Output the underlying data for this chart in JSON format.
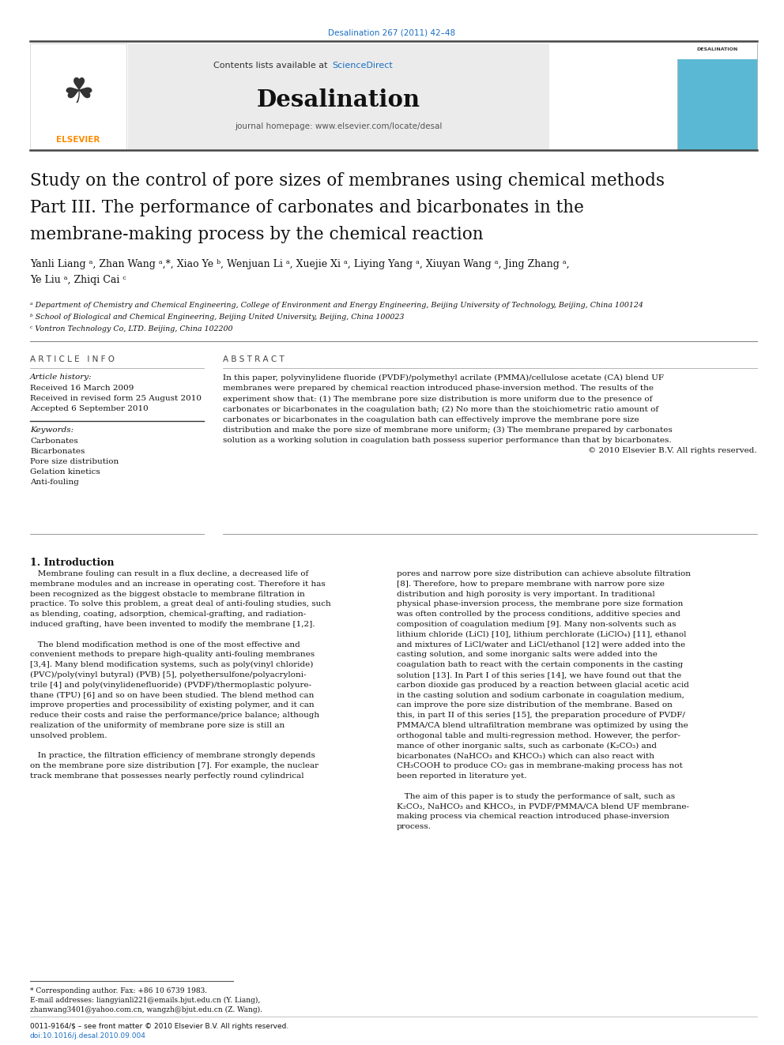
{
  "page_width": 9.92,
  "page_height": 13.23,
  "background_color": "#ffffff",
  "journal_ref": "Desalination 267 (2011) 42–48",
  "journal_ref_color": "#1a6fc4",
  "contents_text": "Contents lists available at ",
  "sciencedirect_text": "ScienceDirect",
  "sciencedirect_color": "#1a6fc4",
  "journal_name": "Desalination",
  "journal_homepage": "journal homepage: www.elsevier.com/locate/desal",
  "title_line1": "Study on the control of pore sizes of membranes using chemical methods",
  "title_line2": "Part III. The performance of carbonates and bicarbonates in the",
  "title_line3": "membrane-making process by the chemical reaction",
  "authors": "Yanli Liang ᵃ, Zhan Wang ᵃ,*, Xiao Ye ᵇ, Wenjuan Li ᵃ, Xuejie Xi ᵃ, Liying Yang ᵃ, Xiuyan Wang ᵃ, Jing Zhang ᵃ,",
  "authors2": "Ye Liu ᵃ, Zhiqi Cai ᶜ",
  "affil_a": "ᵃ Department of Chemistry and Chemical Engineering, College of Environment and Energy Engineering, Beijing University of Technology, Beijing, China 100124",
  "affil_b": "ᵇ School of Biological and Chemical Engineering, Beijing United University, Beijing, China 100023",
  "affil_c": "ᶜ Vontron Technology Co, LTD. Beijing, China 102200",
  "article_info_label": "A R T I C L E   I N F O",
  "article_history_label": "Article history:",
  "received1": "Received 16 March 2009",
  "received2": "Received in revised form 25 August 2010",
  "accepted": "Accepted 6 September 2010",
  "keywords_label": "Keywords:",
  "keywords": [
    "Carbonates",
    "Bicarbonates",
    "Pore size distribution",
    "Gelation kinetics",
    "Anti-fouling"
  ],
  "abstract_label": "A B S T R A C T",
  "abstract_lines": [
    "In this paper, polyvinylidene fluoride (PVDF)/polymethyl acrilate (PMMA)/cellulose acetate (CA) blend UF",
    "membranes were prepared by chemical reaction introduced phase-inversion method. The results of the",
    "experiment show that: (1) The membrane pore size distribution is more uniform due to the presence of",
    "carbonates or bicarbonates in the coagulation bath; (2) No more than the stoichiometric ratio amount of",
    "carbonates or bicarbonates in the coagulation bath can effectively improve the membrane pore size",
    "distribution and make the pore size of membrane more uniform; (3) The membrane prepared by carbonates",
    "solution as a working solution in coagulation bath possess superior performance than that by bicarbonates.",
    "© 2010 Elsevier B.V. All rights reserved."
  ],
  "section1_title": "1. Introduction",
  "intro_left_lines": [
    "   Membrane fouling can result in a flux decline, a decreased life of",
    "membrane modules and an increase in operating cost. Therefore it has",
    "been recognized as the biggest obstacle to membrane filtration in",
    "practice. To solve this problem, a great deal of anti-fouling studies, such",
    "as blending, coating, adsorption, chemical-grafting, and radiation-",
    "induced grafting, have been invented to modify the membrane [1,2].",
    "",
    "   The blend modification method is one of the most effective and",
    "convenient methods to prepare high-quality anti-fouling membranes",
    "[3,4]. Many blend modification systems, such as poly(vinyl chloride)",
    "(PVC)/poly(vinyl butyral) (PVB) [5], polyethersulfone/polyacryloni-",
    "trile [4] and poly(vinylidenefluoride) (PVDF)/thermoplastic polyure-",
    "thane (TPU) [6] and so on have been studied. The blend method can",
    "improve properties and processibility of existing polymer, and it can",
    "reduce their costs and raise the performance/price balance; although",
    "realization of the uniformity of membrane pore size is still an",
    "unsolved problem.",
    "",
    "   In practice, the filtration efficiency of membrane strongly depends",
    "on the membrane pore size distribution [7]. For example, the nuclear",
    "track membrane that possesses nearly perfectly round cylindrical"
  ],
  "intro_right_lines": [
    "pores and narrow pore size distribution can achieve absolute filtration",
    "[8]. Therefore, how to prepare membrane with narrow pore size",
    "distribution and high porosity is very important. In traditional",
    "physical phase-inversion process, the membrane pore size formation",
    "was often controlled by the process conditions, additive species and",
    "composition of coagulation medium [9]. Many non-solvents such as",
    "lithium chloride (LiCl) [10], lithium perchlorate (LiClO₄) [11], ethanol",
    "and mixtures of LiCl/water and LiCl/ethanol [12] were added into the",
    "casting solution, and some inorganic salts were added into the",
    "coagulation bath to react with the certain components in the casting",
    "solution [13]. In Part I of this series [14], we have found out that the",
    "carbon dioxide gas produced by a reaction between glacial acetic acid",
    "in the casting solution and sodium carbonate in coagulation medium,",
    "can improve the pore size distribution of the membrane. Based on",
    "this, in part II of this series [15], the preparation procedure of PVDF/",
    "PMMA/CA blend ultrafiltration membrane was optimized by using the",
    "orthogonal table and multi-regression method. However, the perfor-",
    "mance of other inorganic salts, such as carbonate (K₂CO₃) and",
    "bicarbonates (NaHCO₃ and KHCO₃) which can also react with",
    "CH₃COOH to produce CO₂ gas in membrane-making process has not",
    "been reported in literature yet.",
    "",
    "   The aim of this paper is to study the performance of salt, such as",
    "K₂CO₃, NaHCO₃ and KHCO₃, in PVDF/PMMA/CA blend UF membrane-",
    "making process via chemical reaction introduced phase-inversion",
    "process."
  ],
  "footnote_star": "* Corresponding author. Fax: +86 10 6739 1983.",
  "footnote_email1": "E-mail addresses: liangyianli221@emails.bjut.edu.cn (Y. Liang),",
  "footnote_email2": "zhanwang3401@yahoo.com.cn, wangzh@bjut.edu.cn (Z. Wang).",
  "footer_issn": "0011-9164/$ – see front matter © 2010 Elsevier B.V. All rights reserved.",
  "footer_doi": "doi:10.1016/j.desal.2010.09.004",
  "link_color": "#1a6fc4",
  "text_color": "#000000"
}
